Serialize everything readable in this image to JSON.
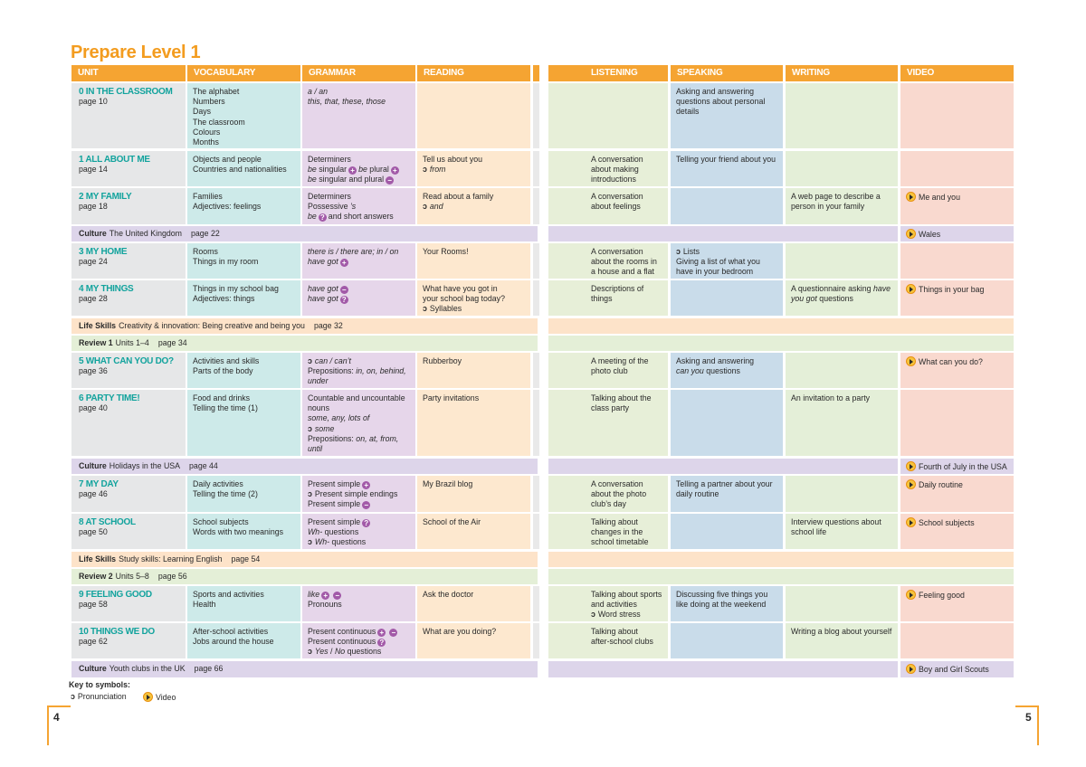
{
  "title": "Prepare Level 1",
  "headers": [
    {
      "text": "UNIT",
      "color": "#e6e7e8"
    },
    {
      "text": "VOCABULARY",
      "color": "#cdeae9"
    },
    {
      "text": "GRAMMAR",
      "color": "#e6d6ea"
    },
    {
      "text": "READING",
      "color": "#fde8cf"
    },
    {
      "text": "LISTENING",
      "color": "#e7efd8"
    },
    {
      "text": "SPEAKING",
      "color": "#c9dcea"
    },
    {
      "text": "WRITING",
      "color": "#e4efd8"
    },
    {
      "text": "VIDEO",
      "color": "#f9d9cf"
    }
  ],
  "rows": [
    {
      "unit": "0 IN THE CLASSROOM",
      "page": "page 10",
      "vocabulary": [
        "The alphabet",
        "Numbers",
        "Days",
        "The classroom",
        "Colours",
        "Months"
      ],
      "grammar": [
        [
          {
            "em": "a / an"
          }
        ],
        [
          {
            "em": "this, that, these, those"
          }
        ]
      ],
      "speaking": [
        "Asking and answering",
        "questions about personal",
        "details"
      ]
    },
    {
      "unit": "1 ALL ABOUT ME",
      "page": "page 14",
      "vocabulary": [
        "Objects and people",
        "Countries and nationalities"
      ],
      "grammar": [
        "Determiners",
        [
          {
            "em": "be"
          },
          " singular",
          {
            "badge": "+"
          },
          {
            "em": "be"
          },
          " plural",
          {
            "badge": "+"
          }
        ],
        [
          {
            "em": "be"
          },
          " singular and plural",
          {
            "badge": "−"
          }
        ]
      ],
      "reading": [
        "Tell us about you",
        [
          {
            "sym": "ↄ"
          },
          {
            "em": "from"
          }
        ]
      ],
      "listening": [
        "A conversation",
        "about making",
        "introductions"
      ],
      "speaking": [
        "Telling your friend about you"
      ]
    },
    {
      "unit": "2 MY FAMILY",
      "page": "page 18",
      "vocabulary": [
        "Families",
        "Adjectives: feelings"
      ],
      "grammar": [
        "Determiners",
        [
          "Possessive ",
          {
            "em": "’s"
          }
        ],
        [
          {
            "em": "be"
          },
          {
            "badge": "?"
          },
          "and short answers"
        ]
      ],
      "reading": [
        "Read about a family",
        [
          {
            "sym": "ↄ"
          },
          {
            "em": "and"
          }
        ]
      ],
      "listening": [
        "A conversation",
        "about feelings"
      ],
      "writing": [
        "A web page to describe a",
        "person in your family"
      ],
      "video": "Me and you"
    },
    {
      "label": "Culture",
      "text": "The United Kingdom",
      "page": "page 22",
      "video": "Wales",
      "color": "#ddd5ea"
    },
    {
      "unit": "3 MY HOME",
      "page": "page 24",
      "vocabulary": [
        "Rooms",
        "Things in my room"
      ],
      "grammar": [
        [
          {
            "em": "there is / there are; in / on"
          }
        ],
        [
          {
            "em": "have got"
          },
          {
            "badge": "+"
          }
        ]
      ],
      "reading": [
        "Your Rooms!"
      ],
      "listening": [
        "A conversation",
        "about the rooms in",
        "a house and a flat"
      ],
      "speaking": [
        [
          {
            "sym": "ↄ"
          },
          "Lists"
        ],
        "Giving a list of what you",
        "have in your bedroom"
      ]
    },
    {
      "unit": "4 MY THINGS",
      "page": "page 28",
      "vocabulary": [
        "Things in my school bag",
        "Adjectives: things"
      ],
      "grammar": [
        [
          {
            "em": "have got"
          },
          {
            "badge": "−"
          }
        ],
        [
          {
            "em": "have got"
          },
          {
            "badge": "?"
          }
        ]
      ],
      "reading": [
        "What have you got in",
        "your school bag today?",
        [
          {
            "sym": "ↄ"
          },
          "Syllables"
        ]
      ],
      "listening": [
        "Descriptions of",
        "things"
      ],
      "writing": [
        [
          "A questionnaire asking ",
          {
            "em": "have"
          }
        ],
        [
          {
            "em": "you got"
          },
          " questions"
        ]
      ],
      "video": "Things in your bag"
    },
    {
      "label": "Life Skills",
      "text": "Creativity & innovation: Being creative and being you",
      "page": "page 32",
      "color": "#fde3c9"
    },
    {
      "label": "Review 1",
      "text": "Units 1–4",
      "page": "page 34",
      "color": "#e4efd7"
    },
    {
      "unit": "5 WHAT CAN YOU DO?",
      "page": "page 36",
      "vocabulary": [
        "Activities and skills",
        "Parts of the body"
      ],
      "grammar": [
        [
          {
            "sym": "ↄ"
          },
          {
            "em": "can / can’t"
          }
        ],
        [
          "Prepositions: ",
          {
            "em": "in, on, behind,"
          }
        ],
        [
          {
            "em": "under"
          }
        ]
      ],
      "reading": [
        "Rubberboy"
      ],
      "listening": [
        "A meeting of the",
        "photo club"
      ],
      "speaking": [
        "Asking and answering",
        [
          {
            "em": "can you"
          },
          " questions"
        ]
      ],
      "video": "What can you do?"
    },
    {
      "unit": "6 PARTY TIME!",
      "page": "page 40",
      "vocabulary": [
        "Food and drinks",
        "Telling the time (1)"
      ],
      "grammar": [
        "Countable and uncountable",
        "nouns",
        [
          {
            "em": "some, any, lots of"
          }
        ],
        [
          {
            "sym": "ↄ"
          },
          {
            "em": "some"
          }
        ],
        [
          "Prepositions: ",
          {
            "em": "on, at, from,"
          }
        ],
        [
          {
            "em": "until"
          }
        ]
      ],
      "reading": [
        "Party invitations"
      ],
      "listening": [
        "Talking about the",
        "class party"
      ],
      "writing": [
        "An invitation to a party"
      ]
    },
    {
      "label": "Culture",
      "text": "Holidays in the USA",
      "page": "page 44",
      "video": "Fourth of July in the USA",
      "color": "#ddd5ea"
    },
    {
      "unit": "7 MY DAY",
      "page": "page 46",
      "vocabulary": [
        "Daily activities",
        "Telling the time (2)"
      ],
      "grammar": [
        [
          "Present simple",
          {
            "badge": "+"
          }
        ],
        [
          {
            "sym": "ↄ"
          },
          "Present simple endings"
        ],
        [
          "Present simple",
          {
            "badge": "−"
          }
        ]
      ],
      "reading": [
        "My Brazil blog"
      ],
      "listening": [
        "A conversation",
        "about the photo",
        "club’s day"
      ],
      "speaking": [
        "Telling a partner about your",
        "daily routine"
      ],
      "video": "Daily routine"
    },
    {
      "unit": "8 AT SCHOOL",
      "page": "page 50",
      "vocabulary": [
        "School subjects",
        "Words with two meanings"
      ],
      "grammar": [
        [
          "Present simple",
          {
            "badge": "?"
          }
        ],
        [
          {
            "em": "Wh-"
          },
          " questions"
        ],
        [
          {
            "sym": "ↄ"
          },
          {
            "em": "Wh-"
          },
          " questions"
        ]
      ],
      "reading": [
        "School of the Air"
      ],
      "listening": [
        "Talking about",
        "changes in the",
        "school timetable"
      ],
      "writing": [
        "Interview questions about",
        "school life"
      ],
      "video": "School subjects"
    },
    {
      "label": "Life Skills",
      "text": "Study skills: Learning English",
      "page": "page 54",
      "color": "#fde3c9"
    },
    {
      "label": "Review 2",
      "text": "Units 5–8",
      "page": "page 56",
      "color": "#e4efd7"
    },
    {
      "unit": "9 FEELING GOOD",
      "page": "page 58",
      "vocabulary": [
        "Sports and activities",
        "Health"
      ],
      "grammar": [
        [
          {
            "em": "like"
          },
          {
            "badge": "+"
          },
          {
            "badge": "−"
          }
        ],
        "Pronouns"
      ],
      "reading": [
        "Ask the doctor"
      ],
      "listening": [
        "Talking about sports",
        "and activities",
        [
          {
            "sym": "ↄ"
          },
          "Word stress"
        ]
      ],
      "speaking": [
        "Discussing five things you",
        "like doing at the weekend"
      ],
      "video": "Feeling good"
    },
    {
      "unit": "10 THINGS WE DO",
      "page": "page 62",
      "vocabulary": [
        "After-school activities",
        "Jobs around the house"
      ],
      "grammar": [
        [
          "Present continuous",
          {
            "badge": "+"
          },
          {
            "badge": "−"
          }
        ],
        [
          "Present continuous",
          {
            "badge": "?"
          }
        ],
        [
          {
            "sym": "ↄ"
          },
          {
            "em": "Yes"
          },
          " / ",
          {
            "em": "No"
          },
          " questions"
        ]
      ],
      "reading": [
        "What are you doing?"
      ],
      "listening": [
        "Talking about",
        "after-school clubs"
      ],
      "writing": [
        "Writing a blog about yourself"
      ]
    },
    {
      "label": "Culture",
      "text": "Youth clubs in the UK",
      "page": "page 66",
      "video": "Boy and Girl Scouts",
      "color": "#ddd5ea"
    }
  ],
  "key": {
    "title": "Key to symbols:",
    "pron_symbol": "ↄ",
    "pronunciation": "Pronunciation",
    "video": "Video"
  },
  "page_left": "4",
  "page_right": "5"
}
